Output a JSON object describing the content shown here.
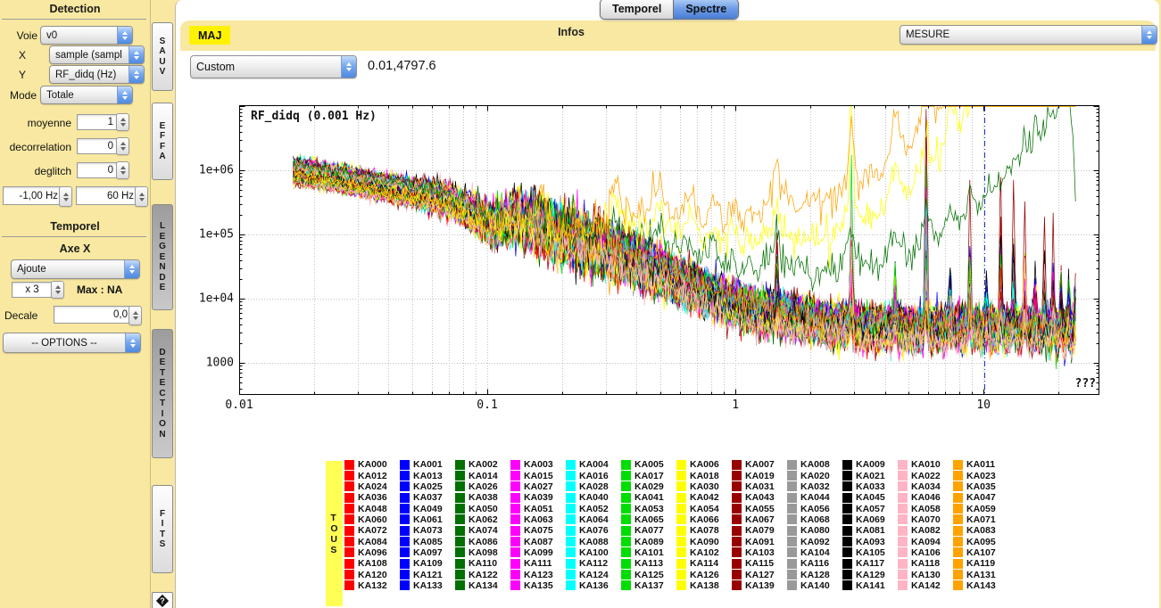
{
  "topbar": {
    "tabs": [
      {
        "label": "Temporel",
        "active": false
      },
      {
        "label": "Spectre",
        "active": true
      }
    ],
    "maj_label": "MAJ",
    "infos_label": "Infos",
    "mesure_value": "MESURE",
    "range_preset_value": "Custom",
    "cursor_coords": "0.01,4797.6"
  },
  "sidebar": {
    "title": "Detection",
    "voie_label": "Voie",
    "voie_value": "v0",
    "x_label": "X",
    "x_value": "sample (sampl",
    "y_label": "Y",
    "y_value": "RF_didq (Hz)",
    "mode_label": "Mode",
    "mode_value": "Totale",
    "moyenne_label": "moyenne",
    "moyenne_value": "1",
    "decorrelation_label": "decorrelation",
    "decorrelation_value": "0",
    "deglitch_label": "deglitch",
    "deglitch_value": "0",
    "freq_min_value": "-1,00 Hz",
    "freq_max_value": "60 Hz",
    "temporel_title": "Temporel",
    "axe_x_label": "Axe X",
    "ajoute_value": "Ajoute",
    "x3_value": "x 3",
    "max_label": "Max : NA",
    "decale_label": "Decale",
    "decale_value": "0,0",
    "options_value": "-- OPTIONS --"
  },
  "side_tabs": {
    "items": [
      {
        "label": "SAUV",
        "active": false
      },
      {
        "label": "EFFA",
        "active": false
      },
      {
        "label": "LEGENDE",
        "active": true
      },
      {
        "label": "DETECTION",
        "active": true
      },
      {
        "label": "FITS",
        "active": false
      }
    ],
    "help_glyph": "?"
  },
  "legend": {
    "tous_label": "TOUS",
    "entries": [
      "KA000",
      "KA001",
      "KA002",
      "KA003",
      "KA004",
      "KA005",
      "KA006",
      "KA007",
      "KA008",
      "KA009",
      "KA010",
      "KA011",
      "KA012",
      "KA013",
      "KA014",
      "KA015",
      "KA016",
      "KA017",
      "KA018",
      "KA019",
      "KA020",
      "KA021",
      "KA022",
      "KA023",
      "KA024",
      "KA025",
      "KA026",
      "KA027",
      "KA028",
      "KA029",
      "KA030",
      "KA031",
      "KA032",
      "KA033",
      "KA034",
      "KA035",
      "KA036",
      "KA037",
      "KA038",
      "KA039",
      "KA040",
      "KA041",
      "KA042",
      "KA043",
      "KA044",
      "KA045",
      "KA046",
      "KA047",
      "KA048",
      "KA049",
      "KA050",
      "KA051",
      "KA052",
      "KA053",
      "KA054",
      "KA055",
      "KA056",
      "KA057",
      "KA058",
      "KA059",
      "KA060",
      "KA061",
      "KA062",
      "KA063",
      "KA064",
      "KA065",
      "KA066",
      "KA067",
      "KA068",
      "KA069",
      "KA070",
      "KA071",
      "KA072",
      "KA073",
      "KA074",
      "KA075",
      "KA076",
      "KA077",
      "KA078",
      "KA079",
      "KA080",
      "KA081",
      "KA082",
      "KA083",
      "KA084",
      "KA085",
      "KA086",
      "KA087",
      "KA088",
      "KA089",
      "KA090",
      "KA091",
      "KA092",
      "KA093",
      "KA094",
      "KA095",
      "KA096",
      "KA097",
      "KA098",
      "KA099",
      "KA100",
      "KA101",
      "KA102",
      "KA103",
      "KA104",
      "KA105",
      "KA106",
      "KA107",
      "KA108",
      "KA109",
      "KA110",
      "KA111",
      "KA112",
      "KA113",
      "KA114",
      "KA115",
      "KA116",
      "KA117",
      "KA118",
      "KA119",
      "KA120",
      "KA121",
      "KA122",
      "KA123",
      "KA124",
      "KA125",
      "KA126",
      "KA127",
      "KA128",
      "KA129",
      "KA130",
      "KA131",
      "KA132",
      "KA133",
      "KA134",
      "KA135",
      "KA136",
      "KA137",
      "KA138",
      "KA139",
      "KA140",
      "KA141",
      "KA142",
      "KA143"
    ]
  },
  "chart_data": {
    "type": "line",
    "title": "RF_didq (0.001 Hz)",
    "x_scale": "log",
    "y_scale": "log",
    "xlim": [
      0.01,
      29.3
    ],
    "ylim": [
      316,
      10300000
    ],
    "x_ticks": [
      {
        "label": "0.01",
        "v": 0.01
      },
      {
        "label": "0.1",
        "v": 0.1
      },
      {
        "label": "1",
        "v": 1
      },
      {
        "label": "10",
        "v": 10
      }
    ],
    "y_ticks": [
      {
        "label": "1e+06",
        "v": 1000000
      },
      {
        "label": "1e+05",
        "v": 100000
      },
      {
        "label": "1e+04",
        "v": 10000
      },
      {
        "label": "1000",
        "v": 1000
      }
    ],
    "corner_label": "???",
    "grid": "dotted-major-plus-log-minor-x",
    "n_series": 144,
    "series_color_cycle": [
      "#ff0000",
      "#0000ff",
      "#007000",
      "#ff00ff",
      "#00ffff",
      "#00dd00",
      "#ffff00",
      "#990000",
      "#999999",
      "#000000",
      "#ffb5c5",
      "#ffa300"
    ],
    "x_range_start": 0.0165,
    "x_range_end": 23.5,
    "points_per_series": 560,
    "envelope_loglog": [
      [
        0.017,
        950000
      ],
      [
        0.03,
        650000
      ],
      [
        0.05,
        450000
      ],
      [
        0.07,
        340000
      ],
      [
        0.09,
        200000
      ],
      [
        0.105,
        140000
      ],
      [
        0.13,
        180000
      ],
      [
        0.18,
        110000
      ],
      [
        0.25,
        70000
      ],
      [
        0.35,
        45000
      ],
      [
        0.5,
        26000
      ],
      [
        0.7,
        14000
      ],
      [
        0.9,
        9000
      ],
      [
        1.2,
        6500
      ],
      [
        2.0,
        4500
      ],
      [
        3.0,
        3600
      ],
      [
        5.0,
        3400
      ],
      [
        8.0,
        3300
      ],
      [
        12.0,
        3200
      ],
      [
        18.0,
        3000
      ],
      [
        23.5,
        2900
      ]
    ],
    "series_spread_dex": 0.16,
    "noise_dex_low": 0.045,
    "noise_dex_high": 0.12,
    "knee_extra_dex": 0.1,
    "harmonic_fundamental_hz": 1.467,
    "harmonic_base_dex": [
      0,
      0.45,
      0.75,
      0.35,
      1.0,
      0.35,
      0.5,
      0.3,
      0.6,
      0.55,
      0.45,
      0.35,
      0.5,
      0.4,
      0.35,
      0.3,
      0.3
    ],
    "sub_fundamental_hz": 0.1633,
    "specials": {
      "orange_series": 11,
      "yellow_series": 6,
      "green_series": 2,
      "pink_low_series": 10,
      "orange_lift_dex": 1.15,
      "yellow_lift_dex": 0.78,
      "green_lift_dex": 0.45,
      "pink_drop_dex": -0.32
    },
    "forced_spikes": [
      {
        "s": 7,
        "n": 4,
        "amp": 3.45
      },
      {
        "s": 91,
        "n": 4,
        "amp": 3.1
      },
      {
        "s": 55,
        "n": 4,
        "amp": 2.8
      },
      {
        "s": 5,
        "n": 4,
        "amp": 2.2
      },
      {
        "s": 30,
        "n": 4,
        "amp": 2.1
      },
      {
        "s": 136,
        "n": 4,
        "amp": 1.8
      },
      {
        "s": 5,
        "n": 2,
        "amp": 2.7
      },
      {
        "s": 6,
        "n": 2,
        "amp": 2.5
      },
      {
        "s": 19,
        "n": 8,
        "amp": 2.4
      },
      {
        "s": 7,
        "n": 9,
        "amp": 2.3
      },
      {
        "s": 31,
        "n": 6,
        "amp": 2.2
      },
      {
        "s": 43,
        "n": 10,
        "amp": 2.2
      },
      {
        "s": 103,
        "n": 12,
        "amp": 2.0
      },
      {
        "s": 67,
        "n": 13,
        "amp": 1.9
      }
    ],
    "cursor_line": {
      "x": 10.1,
      "color": "#2233bb",
      "style": "dash-dot"
    },
    "y_cap": 9800000
  }
}
